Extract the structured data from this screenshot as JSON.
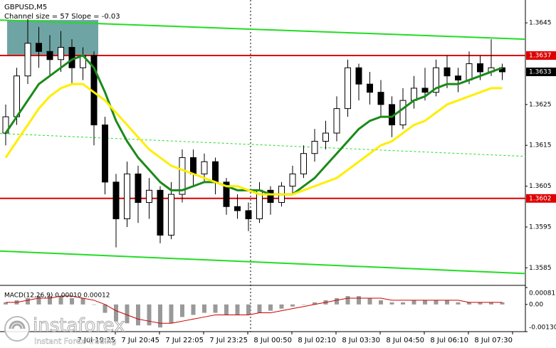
{
  "chart_data": {
    "type": "candlestick",
    "title": "GBPUSD,M5",
    "subtitle": "Channel size = 57 Slope = -0.03",
    "open": [
      1.3618,
      1.3622,
      1.3632,
      1.364,
      1.3638,
      1.3636,
      1.3639,
      1.3634,
      1.3637,
      1.362,
      1.3606,
      1.3597,
      1.3608,
      1.3601,
      1.3604,
      1.3593,
      1.3603,
      1.3612,
      1.3608,
      1.3611,
      1.3606,
      1.36,
      1.3599,
      1.3597,
      1.3604,
      1.3601,
      1.3605,
      1.3608,
      1.3613,
      1.3616,
      1.3618,
      1.3624,
      1.3634,
      1.363,
      1.3628,
      1.3625,
      1.362,
      1.3626,
      1.3629,
      1.3628,
      1.3634,
      1.3632,
      1.3631,
      1.3635,
      1.3633,
      1.3634
    ],
    "high": [
      1.3625,
      1.3634,
      1.3646,
      1.3644,
      1.3642,
      1.3643,
      1.3641,
      1.3639,
      1.3638,
      1.3622,
      1.3608,
      1.3611,
      1.361,
      1.3607,
      1.3605,
      1.3606,
      1.3614,
      1.3614,
      1.3613,
      1.3612,
      1.3607,
      1.3603,
      1.3601,
      1.3606,
      1.3605,
      1.3606,
      1.361,
      1.3615,
      1.3619,
      1.3621,
      1.3627,
      1.3636,
      1.3635,
      1.3633,
      1.3631,
      1.3627,
      1.3629,
      1.3632,
      1.3634,
      1.3636,
      1.3637,
      1.3634,
      1.3638,
      1.3637,
      1.3641,
      1.3635
    ],
    "low": [
      1.3615,
      1.362,
      1.363,
      1.3634,
      1.3632,
      1.3633,
      1.363,
      1.3631,
      1.3615,
      1.3603,
      1.359,
      1.3595,
      1.3596,
      1.3597,
      1.3591,
      1.3592,
      1.3601,
      1.3605,
      1.3606,
      1.3603,
      1.3598,
      1.3597,
      1.3594,
      1.3596,
      1.3598,
      1.36,
      1.3603,
      1.3607,
      1.3611,
      1.3614,
      1.3616,
      1.3622,
      1.3626,
      1.3625,
      1.3622,
      1.3617,
      1.3619,
      1.3624,
      1.3626,
      1.3627,
      1.3629,
      1.3628,
      1.363,
      1.3631,
      1.3632,
      1.3631
    ],
    "close": [
      1.3622,
      1.3632,
      1.364,
      1.3638,
      1.3636,
      1.3639,
      1.3634,
      1.3637,
      1.362,
      1.3606,
      1.3597,
      1.3608,
      1.3601,
      1.3604,
      1.3593,
      1.3603,
      1.3612,
      1.3608,
      1.3611,
      1.3606,
      1.36,
      1.3599,
      1.3597,
      1.3604,
      1.3601,
      1.3605,
      1.3608,
      1.3613,
      1.3616,
      1.3618,
      1.3624,
      1.3634,
      1.363,
      1.3628,
      1.3625,
      1.362,
      1.3626,
      1.3629,
      1.3628,
      1.3634,
      1.3632,
      1.3631,
      1.3635,
      1.3633,
      1.3634,
      1.3633
    ],
    "xticks": [
      {
        "value": 10,
        "label": "7 Jul 19:25"
      },
      {
        "value": 14,
        "label": "7 Jul 20:45"
      },
      {
        "value": 18,
        "label": "7 Jul 22:05"
      },
      {
        "value": 22,
        "label": "7 Jul 23:25"
      },
      {
        "value": 26,
        "label": "8 Jul 00:50"
      },
      {
        "value": 30,
        "label": "8 Jul 02:10"
      },
      {
        "value": 34,
        "label": "8 Jul 03:30"
      },
      {
        "value": 38,
        "label": "8 Jul 04:50"
      },
      {
        "value": 42,
        "label": "8 Jul 06:10"
      },
      {
        "value": 46,
        "label": "8 Jul 07:30"
      }
    ],
    "ylim": [
      1.35807,
      1.36506
    ],
    "yticks": [
      1.3645,
      1.3625,
      1.3615,
      1.3605,
      1.3595,
      1.3585
    ],
    "moving_averages": [
      {
        "color": "#1a8a1a",
        "values": [
          1.3618,
          1.3622,
          1.3626,
          1.363,
          1.3632,
          1.3634,
          1.3636,
          1.3637,
          1.3634,
          1.3628,
          1.3621,
          1.3616,
          1.3612,
          1.3609,
          1.3606,
          1.3604,
          1.3604,
          1.3605,
          1.3606,
          1.3606,
          1.3605,
          1.3604,
          1.3604,
          1.3604,
          1.3603,
          1.3603,
          1.3603,
          1.3605,
          1.3607,
          1.361,
          1.3613,
          1.3616,
          1.3619,
          1.3621,
          1.3622,
          1.3622,
          1.3624,
          1.3626,
          1.3627,
          1.3629,
          1.363,
          1.363,
          1.3631,
          1.3632,
          1.3633,
          1.3634
        ]
      },
      {
        "color": "#ffee00",
        "values": [
          1.3612,
          1.3616,
          1.362,
          1.3624,
          1.3627,
          1.3629,
          1.363,
          1.363,
          1.3628,
          1.3626,
          1.3623,
          1.362,
          1.3617,
          1.3614,
          1.3612,
          1.361,
          1.3609,
          1.3608,
          1.3607,
          1.3606,
          1.3605,
          1.3605,
          1.3604,
          1.3603,
          1.3603,
          1.3603,
          1.3603,
          1.3604,
          1.3605,
          1.3606,
          1.3607,
          1.3609,
          1.3611,
          1.3613,
          1.3615,
          1.3616,
          1.3618,
          1.362,
          1.3621,
          1.3623,
          1.3625,
          1.3626,
          1.3627,
          1.3628,
          1.3629,
          1.3629
        ]
      }
    ],
    "channel": {
      "color": "#22dd22",
      "upper": [
        1.36457,
        1.3641
      ],
      "middle": [
        1.36179,
        1.36123
      ],
      "lower": [
        1.35891,
        1.35836
      ]
    },
    "zone": {
      "color": "#5f9a9a",
      "low": 1.3637,
      "high": 1.36457
    },
    "levels": [
      {
        "value": 1.3637,
        "color": "#dd0000"
      },
      {
        "value": 1.3602,
        "color": "#dd0000"
      }
    ],
    "last_price": 1.3633,
    "macd": {
      "title": "MACD(12,26,9) 0.00010 0.00012",
      "signal_color": "#cc0000",
      "ylim": [
        -0.0013,
        0.00081
      ],
      "yticks": [
        0.00081,
        {
          "value": 0,
          "label": "0.00"
        },
        {
          "value": -0.0013,
          "label": "-0.00130"
        }
      ],
      "histogram": [
        0.0001,
        0.0002,
        0.0003,
        0.0004,
        0.0004,
        0.0004,
        0.0003,
        0.0003,
        0.0,
        -0.0004,
        -0.0008,
        -0.0009,
        -0.001,
        -0.001,
        -0.0011,
        -0.0009,
        -0.0006,
        -0.0005,
        -0.0004,
        -0.0004,
        -0.0005,
        -0.0005,
        -0.0005,
        -0.0004,
        -0.0003,
        -0.0002,
        -0.0001,
        0.0,
        0.0001,
        0.0002,
        0.0003,
        0.0004,
        0.0004,
        0.0003,
        0.0002,
        0.0001,
        0.0001,
        0.0002,
        0.0002,
        0.0002,
        0.0002,
        0.0001,
        0.0001,
        0.0001,
        0.0001,
        0.0001
      ],
      "signal": [
        0.0001,
        0.0001,
        0.0002,
        0.0003,
        0.0003,
        0.0004,
        0.0004,
        0.0003,
        0.0002,
        0.0,
        -0.0003,
        -0.0005,
        -0.0007,
        -0.0008,
        -0.0009,
        -0.0009,
        -0.0008,
        -0.0007,
        -0.0006,
        -0.0005,
        -0.0005,
        -0.0005,
        -0.0005,
        -0.0004,
        -0.0004,
        -0.0003,
        -0.0002,
        -0.0001,
        0.0,
        0.0001,
        0.0002,
        0.0003,
        0.0003,
        0.0003,
        0.0003,
        0.0002,
        0.0002,
        0.0002,
        0.0002,
        0.0002,
        0.0002,
        0.0002,
        0.0001,
        0.0001,
        0.0001,
        0.0001
      ]
    }
  },
  "logo": {
    "name": "instaforex",
    "tagline": "Instant Forex Trading"
  }
}
